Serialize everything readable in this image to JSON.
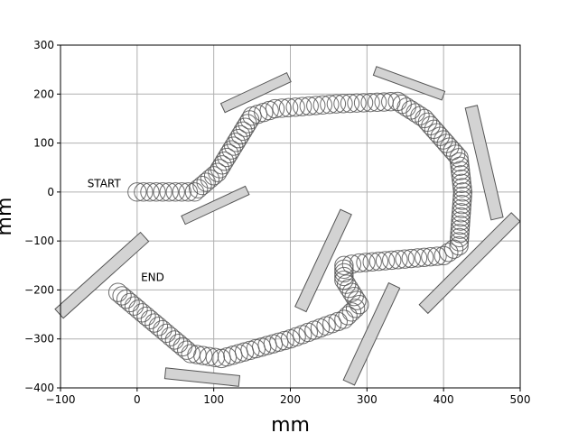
{
  "chart_data": {
    "type": "scatter",
    "title": "",
    "xlabel": "mm",
    "ylabel": "mm",
    "xlim": [
      -100,
      500
    ],
    "ylim": [
      -400,
      300
    ],
    "x_ticks": [
      -100,
      0,
      100,
      200,
      300,
      400,
      500
    ],
    "y_ticks": [
      -400,
      -300,
      -200,
      -100,
      0,
      100,
      200,
      300
    ],
    "grid": true,
    "annotations": [
      {
        "text": "START",
        "x": -65,
        "y": 10
      },
      {
        "text": "END",
        "x": 5,
        "y": -182
      }
    ],
    "circle_radius": 12,
    "path_waypoints": [
      [
        0,
        0
      ],
      [
        75,
        0
      ],
      [
        105,
        40
      ],
      [
        150,
        155
      ],
      [
        180,
        170
      ],
      [
        260,
        180
      ],
      [
        340,
        185
      ],
      [
        375,
        150
      ],
      [
        420,
        70
      ],
      [
        425,
        0
      ],
      [
        420,
        -110
      ],
      [
        400,
        -130
      ],
      [
        290,
        -145
      ],
      [
        270,
        -150
      ],
      [
        270,
        -180
      ],
      [
        290,
        -230
      ],
      [
        270,
        -260
      ],
      [
        200,
        -300
      ],
      [
        110,
        -340
      ],
      [
        70,
        -330
      ],
      [
        -25,
        -205
      ]
    ],
    "obstacles": [
      {
        "cx": 155,
        "cy": 203,
        "length": 95,
        "width": 13,
        "angle_deg": 25
      },
      {
        "cx": 102,
        "cy": -27,
        "length": 92,
        "width": 12,
        "angle_deg": 25
      },
      {
        "cx": 355,
        "cy": 222,
        "length": 95,
        "width": 12,
        "angle_deg": -20
      },
      {
        "cx": 453,
        "cy": 60,
        "length": 150,
        "width": 16,
        "angle_deg": -77
      },
      {
        "cx": 434,
        "cy": -145,
        "length": 170,
        "width": 16,
        "angle_deg": 45
      },
      {
        "cx": 243,
        "cy": -140,
        "length": 140,
        "width": 16,
        "angle_deg": 65
      },
      {
        "cx": 306,
        "cy": -290,
        "length": 140,
        "width": 16,
        "angle_deg": 65
      },
      {
        "cx": -46,
        "cy": -170,
        "length": 150,
        "width": 16,
        "angle_deg": 42
      },
      {
        "cx": 85,
        "cy": -378,
        "length": 97,
        "width": 14,
        "angle_deg": -6
      }
    ]
  }
}
